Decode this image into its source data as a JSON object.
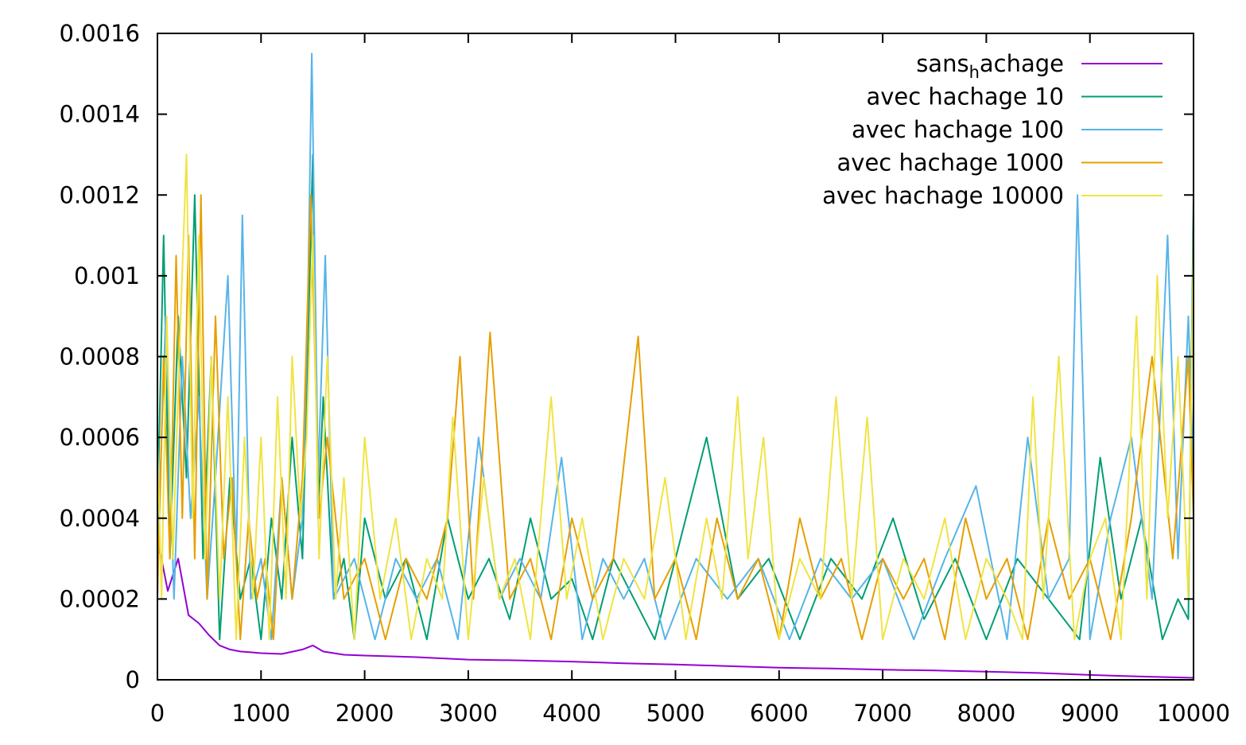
{
  "chart_data": {
    "type": "line",
    "title": "",
    "xlabel": "",
    "ylabel": "",
    "xlim": [
      0,
      10000
    ],
    "ylim": [
      0,
      0.0016
    ],
    "xticks": [
      "0",
      "1000",
      "2000",
      "3000",
      "4000",
      "5000",
      "6000",
      "7000",
      "8000",
      "9000",
      "10000"
    ],
    "yticks": [
      "0",
      "0.0002",
      "0.0004",
      "0.0006",
      "0.0008",
      "0.001",
      "0.0012",
      "0.0014",
      "0.0016"
    ],
    "grid": false,
    "legend_position": "top-right",
    "series": [
      {
        "name": "sans_hachage",
        "legend_main": "sans",
        "legend_sub": "h",
        "legend_rest": "achage",
        "color": "#9400d3",
        "x": [
          0,
          100,
          200,
          300,
          400,
          500,
          600,
          700,
          800,
          900,
          1000,
          1200,
          1400,
          1500,
          1600,
          1800,
          2000,
          2500,
          3000,
          3500,
          4000,
          4500,
          5000,
          5500,
          6000,
          6500,
          7000,
          7500,
          8000,
          8500,
          9000,
          9500,
          10000
        ],
        "y": [
          0.00035,
          0.00022,
          0.0003,
          0.00016,
          0.00014,
          0.00011,
          8.5e-05,
          7.5e-05,
          7e-05,
          6.8e-05,
          6.6e-05,
          6.4e-05,
          7.5e-05,
          8.5e-05,
          7e-05,
          6.2e-05,
          6e-05,
          5.6e-05,
          5e-05,
          4.8e-05,
          4.5e-05,
          4.1e-05,
          3.8e-05,
          3.4e-05,
          3e-05,
          2.8e-05,
          2.5e-05,
          2.3e-05,
          2e-05,
          1.7e-05,
          1.2e-05,
          8e-06,
          5e-06
        ]
      },
      {
        "name": "avec hachage 10",
        "color": "#009e73",
        "x": [
          0,
          60,
          120,
          200,
          280,
          360,
          440,
          520,
          600,
          700,
          800,
          900,
          1000,
          1100,
          1200,
          1300,
          1400,
          1450,
          1500,
          1550,
          1600,
          1700,
          1800,
          1900,
          2000,
          2200,
          2400,
          2600,
          2800,
          3000,
          3200,
          3400,
          3600,
          3800,
          4000,
          4200,
          4400,
          4600,
          4800,
          5000,
          5300,
          5600,
          5900,
          6200,
          6500,
          6800,
          7100,
          7400,
          7700,
          8000,
          8300,
          8600,
          8900,
          9100,
          9300,
          9500,
          9700,
          9850,
          9950,
          10000
        ],
        "y": [
          0.0004,
          0.0011,
          0.0003,
          0.0009,
          0.0005,
          0.0012,
          0.0003,
          0.0008,
          0.0001,
          0.0005,
          0.0002,
          0.0003,
          0.0001,
          0.0004,
          0.0002,
          0.0006,
          0.0003,
          0.0008,
          0.0013,
          0.0004,
          0.0007,
          0.0002,
          0.0003,
          0.0001,
          0.0004,
          0.0002,
          0.0003,
          0.0001,
          0.0004,
          0.0002,
          0.0003,
          0.00015,
          0.0004,
          0.0002,
          0.00025,
          0.0001,
          0.0003,
          0.0002,
          0.0001,
          0.0003,
          0.0006,
          0.0002,
          0.0003,
          0.0001,
          0.0003,
          0.0002,
          0.0004,
          0.00015,
          0.0003,
          0.0001,
          0.0003,
          0.0002,
          0.0001,
          0.00055,
          0.0002,
          0.0004,
          0.0001,
          0.0002,
          0.00015,
          0.0012
        ]
      },
      {
        "name": "avec hachage 100",
        "color": "#56b4e9",
        "x": [
          0,
          80,
          160,
          240,
          320,
          400,
          480,
          560,
          680,
          760,
          820,
          900,
          1000,
          1100,
          1200,
          1300,
          1400,
          1450,
          1490,
          1550,
          1620,
          1700,
          1900,
          2100,
          2300,
          2500,
          2700,
          2900,
          3100,
          3300,
          3500,
          3700,
          3900,
          4100,
          4300,
          4500,
          4700,
          4900,
          5200,
          5500,
          5800,
          6100,
          6400,
          6700,
          7000,
          7300,
          7600,
          7900,
          8200,
          8400,
          8600,
          8800,
          8880,
          9000,
          9200,
          9400,
          9600,
          9750,
          9850,
          9950,
          10000
        ],
        "y": [
          0.0003,
          0.0009,
          0.0002,
          0.0008,
          0.0004,
          0.0007,
          0.0002,
          0.0005,
          0.001,
          0.0003,
          0.00115,
          0.0002,
          0.0003,
          0.0001,
          0.0005,
          0.0002,
          0.0004,
          0.0009,
          0.00155,
          0.0005,
          0.00105,
          0.0002,
          0.0003,
          0.0001,
          0.0003,
          0.0002,
          0.0003,
          0.0001,
          0.0006,
          0.0002,
          0.0003,
          0.0002,
          0.00055,
          0.0001,
          0.0003,
          0.0002,
          0.0003,
          0.0001,
          0.0003,
          0.0002,
          0.0003,
          0.0001,
          0.0003,
          0.0002,
          0.0003,
          0.0001,
          0.0003,
          0.00048,
          0.0001,
          0.0006,
          0.0002,
          0.0003,
          0.0012,
          0.0001,
          0.0004,
          0.0006,
          0.0002,
          0.0011,
          0.0003,
          0.0009,
          0.0005
        ]
      },
      {
        "name": "avec hachage 1000",
        "color": "#e69f00",
        "x": [
          0,
          60,
          120,
          180,
          240,
          300,
          360,
          420,
          480,
          560,
          640,
          720,
          800,
          880,
          960,
          1040,
          1120,
          1200,
          1300,
          1400,
          1480,
          1560,
          1640,
          1800,
          2000,
          2200,
          2400,
          2600,
          2800,
          2920,
          3050,
          3210,
          3400,
          3600,
          3800,
          4000,
          4200,
          4400,
          4640,
          4800,
          5000,
          5200,
          5400,
          5600,
          5800,
          6000,
          6200,
          6400,
          6600,
          6800,
          7000,
          7200,
          7400,
          7600,
          7800,
          8000,
          8200,
          8400,
          8600,
          8800,
          9000,
          9200,
          9400,
          9600,
          9800,
          9950,
          10000
        ],
        "y": [
          0.0002,
          0.0008,
          0.0003,
          0.00105,
          0.0004,
          0.0011,
          0.0003,
          0.0012,
          0.0002,
          0.0009,
          0.0003,
          0.0005,
          0.0001,
          0.0004,
          0.0002,
          0.0003,
          0.0001,
          0.0005,
          0.0002,
          0.0005,
          0.0012,
          0.0004,
          0.0006,
          0.0002,
          0.0003,
          0.0001,
          0.0003,
          0.0002,
          0.0004,
          0.0008,
          0.0002,
          0.00086,
          0.0002,
          0.0003,
          0.0001,
          0.0004,
          0.0002,
          0.0003,
          0.00085,
          0.0002,
          0.0003,
          0.0001,
          0.0004,
          0.0002,
          0.0003,
          0.0001,
          0.0004,
          0.0002,
          0.0003,
          0.0001,
          0.0003,
          0.0002,
          0.0003,
          0.0001,
          0.0004,
          0.0002,
          0.0003,
          0.0001,
          0.0004,
          0.0002,
          0.0003,
          0.0001,
          0.0004,
          0.0008,
          0.0003,
          0.0008,
          0.0004
        ]
      },
      {
        "name": "avec hachage 10000",
        "color": "#f0e442",
        "x": [
          0,
          40,
          90,
          150,
          210,
          280,
          340,
          400,
          460,
          520,
          600,
          680,
          760,
          840,
          920,
          1000,
          1080,
          1160,
          1240,
          1300,
          1380,
          1440,
          1500,
          1560,
          1640,
          1720,
          1800,
          1900,
          2000,
          2150,
          2300,
          2450,
          2600,
          2750,
          2850,
          3000,
          3150,
          3300,
          3450,
          3600,
          3800,
          3950,
          4100,
          4300,
          4500,
          4700,
          4900,
          5100,
          5300,
          5450,
          5600,
          5700,
          5850,
          6000,
          6200,
          6400,
          6550,
          6700,
          6850,
          7000,
          7200,
          7400,
          7600,
          7800,
          8000,
          8200,
          8350,
          8450,
          8550,
          8700,
          8850,
          9000,
          9150,
          9300,
          9450,
          9550,
          9650,
          9750,
          9850,
          9950,
          10000
        ],
        "y": [
          0.0006,
          0.0002,
          0.0009,
          0.0003,
          0.0008,
          0.0013,
          0.0004,
          0.0011,
          0.0003,
          0.0008,
          0.0002,
          0.0007,
          0.0001,
          0.0006,
          0.0002,
          0.0006,
          0.0001,
          0.0007,
          0.0002,
          0.0008,
          0.0004,
          0.0006,
          0.0011,
          0.0003,
          0.0008,
          0.0002,
          0.0005,
          0.0001,
          0.0006,
          0.0002,
          0.0004,
          0.0001,
          0.0003,
          0.0002,
          0.00065,
          0.0001,
          0.0005,
          0.0002,
          0.0003,
          0.0001,
          0.0007,
          0.0002,
          0.0004,
          0.0001,
          0.0003,
          0.0002,
          0.0005,
          0.0001,
          0.0004,
          0.0002,
          0.0007,
          0.0003,
          0.0006,
          0.0001,
          0.0003,
          0.0002,
          0.0007,
          0.0002,
          0.00065,
          0.0001,
          0.0003,
          0.0002,
          0.0004,
          0.0001,
          0.0003,
          0.0002,
          0.0001,
          0.0007,
          0.0002,
          0.0008,
          0.0001,
          0.0003,
          0.0004,
          0.0001,
          0.0009,
          0.0002,
          0.001,
          0.0004,
          0.0008,
          0.0002,
          0.0011
        ]
      }
    ]
  }
}
